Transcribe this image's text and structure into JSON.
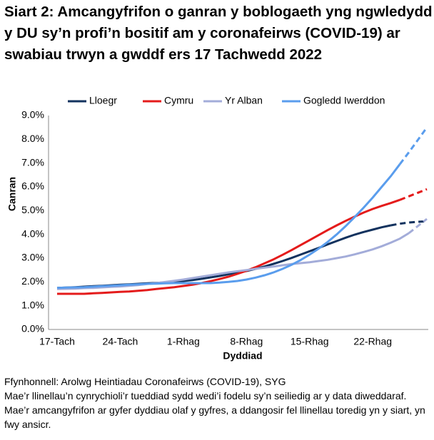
{
  "chart_data": {
    "type": "line",
    "title": "Siart 2: Amcangyfrifon o ganran y boblogaeth yng ngwledydd y DU sy’n profi’n bositif am y coronafeirws (COVID-19) ar swabiau trwyn a gwddf ers 17 Tachwedd 2022",
    "x_label": "Dyddiad",
    "y_label": "Canran",
    "source": "Ffynhonnell: Arolwg Heintiadau Coronafeirws (COVID-19), SYG",
    "note": "Mae’r llinellau’n cynrychioli’r tueddiad sydd wedi’i fodelu sy’n seiliedig ar y data diweddaraf. Mae’r amcangyfrifon ar gyfer dyddiau olaf y gyfres, a ddangosir fel llinellau toredig yn y siart, yn fwy ansicr.",
    "categories": [
      "17-Tach",
      null,
      null,
      null,
      null,
      null,
      null,
      "24-Tach",
      null,
      null,
      null,
      null,
      null,
      null,
      "1-Rhag",
      null,
      null,
      null,
      null,
      null,
      null,
      "8-Rhag",
      null,
      null,
      null,
      null,
      null,
      null,
      "15-Rhag",
      null,
      null,
      null,
      null,
      null,
      null,
      "22-Rhag",
      null,
      null,
      null,
      null,
      null,
      null
    ],
    "ylim": [
      0,
      9
    ],
    "yticks": [
      {
        "value": 0,
        "label": "0.0%"
      },
      {
        "value": 1,
        "label": "1.0%"
      },
      {
        "value": 2,
        "label": "2.0%"
      },
      {
        "value": 3,
        "label": "3.0%"
      },
      {
        "value": 4,
        "label": "4.0%"
      },
      {
        "value": 5,
        "label": "5.0%"
      },
      {
        "value": 6,
        "label": "6.0%"
      },
      {
        "value": 7,
        "label": "7.0%"
      },
      {
        "value": 8,
        "label": "8.0%"
      },
      {
        "value": 9,
        "label": "9.0%"
      }
    ],
    "grid": false,
    "legend": "top",
    "series": [
      {
        "name": "Lloegr",
        "color": "#12325e",
        "dashed_from": 37,
        "values": [
          1.75,
          1.76,
          1.78,
          1.8,
          1.82,
          1.84,
          1.86,
          1.88,
          1.9,
          1.92,
          1.94,
          1.96,
          1.98,
          2.0,
          2.04,
          2.08,
          2.13,
          2.19,
          2.25,
          2.32,
          2.39,
          2.46,
          2.55,
          2.65,
          2.76,
          2.88,
          3.01,
          3.15,
          3.29,
          3.43,
          3.58,
          3.72,
          3.86,
          3.99,
          4.1,
          4.2,
          4.3,
          4.38,
          4.45,
          4.5,
          4.53,
          4.55
        ]
      },
      {
        "name": "Cymru",
        "color": "#e41b1b",
        "dashed_from": 38,
        "values": [
          1.5,
          1.5,
          1.5,
          1.5,
          1.52,
          1.54,
          1.56,
          1.58,
          1.6,
          1.63,
          1.66,
          1.7,
          1.74,
          1.78,
          1.83,
          1.88,
          1.95,
          2.03,
          2.12,
          2.22,
          2.34,
          2.47,
          2.62,
          2.78,
          2.95,
          3.14,
          3.34,
          3.55,
          3.76,
          3.97,
          4.18,
          4.38,
          4.57,
          4.75,
          4.92,
          5.07,
          5.2,
          5.32,
          5.45,
          5.6,
          5.75,
          5.9
        ]
      },
      {
        "name": "Yr Alban",
        "color": "#a3acd9",
        "dashed_from": 39,
        "values": [
          1.7,
          1.71,
          1.72,
          1.74,
          1.75,
          1.77,
          1.79,
          1.81,
          1.84,
          1.87,
          1.91,
          1.95,
          2.0,
          2.05,
          2.1,
          2.16,
          2.22,
          2.28,
          2.34,
          2.4,
          2.45,
          2.5,
          2.55,
          2.6,
          2.65,
          2.7,
          2.75,
          2.79,
          2.83,
          2.88,
          2.93,
          3.0,
          3.07,
          3.16,
          3.26,
          3.37,
          3.5,
          3.65,
          3.82,
          4.05,
          4.35,
          4.65
        ]
      },
      {
        "name": "Gogledd Iwerddon",
        "color": "#5a9ded",
        "dashed_from": 38,
        "values": [
          1.75,
          1.76,
          1.77,
          1.78,
          1.8,
          1.82,
          1.84,
          1.86,
          1.88,
          1.9,
          1.92,
          1.93,
          1.94,
          1.95,
          1.95,
          1.95,
          1.95,
          1.95,
          1.97,
          2.0,
          2.04,
          2.1,
          2.18,
          2.28,
          2.4,
          2.55,
          2.72,
          2.92,
          3.15,
          3.4,
          3.68,
          4.0,
          4.35,
          4.73,
          5.13,
          5.55,
          6.0,
          6.45,
          6.95,
          7.45,
          7.97,
          8.5
        ]
      }
    ]
  }
}
